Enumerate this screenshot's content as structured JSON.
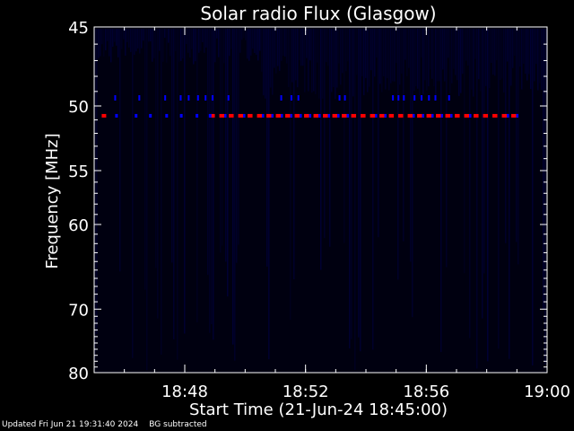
{
  "chart_data": {
    "type": "heatmap",
    "title": "Solar radio Flux (Glasgow)",
    "xlabel": "Start Time (21-Jun-24 18:45:00)",
    "ylabel": "Frequency [MHz]",
    "x_start": "18:45:00",
    "x_end": "19:00:00",
    "x_ticks": [
      "18:48",
      "18:52",
      "18:56",
      "19:00"
    ],
    "ylim": [
      45,
      80
    ],
    "y_scale": "reciprocal",
    "y_ticks": [
      45,
      50,
      55,
      60,
      70,
      80
    ],
    "colormap": [
      "#000010",
      "#000040",
      "#0000ff",
      "#ff0000"
    ],
    "features": [
      {
        "kind": "interference_line",
        "freq_mhz": 50.7,
        "start": "18:45:15",
        "end": "18:59:05",
        "segments_start": "18:48:50",
        "color": "#ff0000"
      },
      {
        "kind": "interference_line",
        "freq_mhz": 49.5,
        "start": "18:45:40",
        "end": "18:56:50",
        "color": "#0000ff"
      }
    ]
  },
  "footer": {
    "updated": "Updated Fri Jun 21 19:31:40 2024",
    "bg_note": "BG subtracted"
  }
}
